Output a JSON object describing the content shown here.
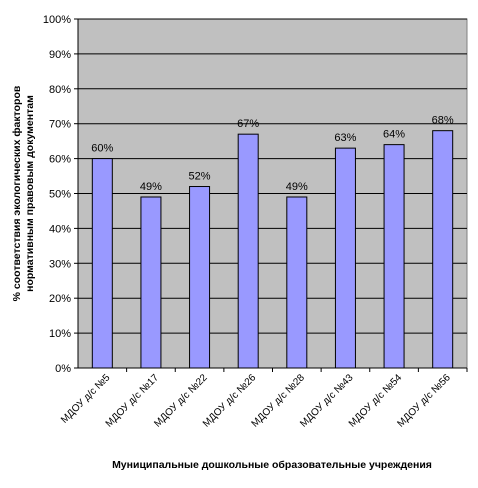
{
  "chart_data": {
    "type": "bar",
    "title": "",
    "categories": [
      "МДОУ д/с №5",
      "МДОУ д/с №17",
      "МДОУ д/с №22",
      "МДОУ д/с №26",
      "МДОУ д/с №28",
      "МДОУ д/с №43",
      "МДОУ д/с №54",
      "МДОУ д/с №56"
    ],
    "series": [
      {
        "values": [
          60,
          49,
          52,
          67,
          49,
          63,
          64,
          68
        ]
      }
    ],
    "data_labels": [
      "60%",
      "49%",
      "52%",
      "67%",
      "49%",
      "63%",
      "64%",
      "68%"
    ],
    "xlabel": "Муниципальные дошкольные образовательные учреждения",
    "ylabel_lines": [
      "% соответствия экологических факторов",
      "нормативным правовым документам"
    ],
    "ylim": [
      0,
      100
    ],
    "y_ticks": [
      0,
      10,
      20,
      30,
      40,
      50,
      60,
      70,
      80,
      90,
      100
    ],
    "y_tick_labels": [
      "0%",
      "10%",
      "20%",
      "30%",
      "40%",
      "50%",
      "60%",
      "70%",
      "80%",
      "90%",
      "100%"
    ],
    "grid": true,
    "legend": "none",
    "colors": {
      "bar_fill": "#9999ff",
      "bar_stroke": "#000000",
      "plot_background": "#c0c0c0",
      "gridline": "#000000",
      "page_background": "#ffffff"
    }
  }
}
